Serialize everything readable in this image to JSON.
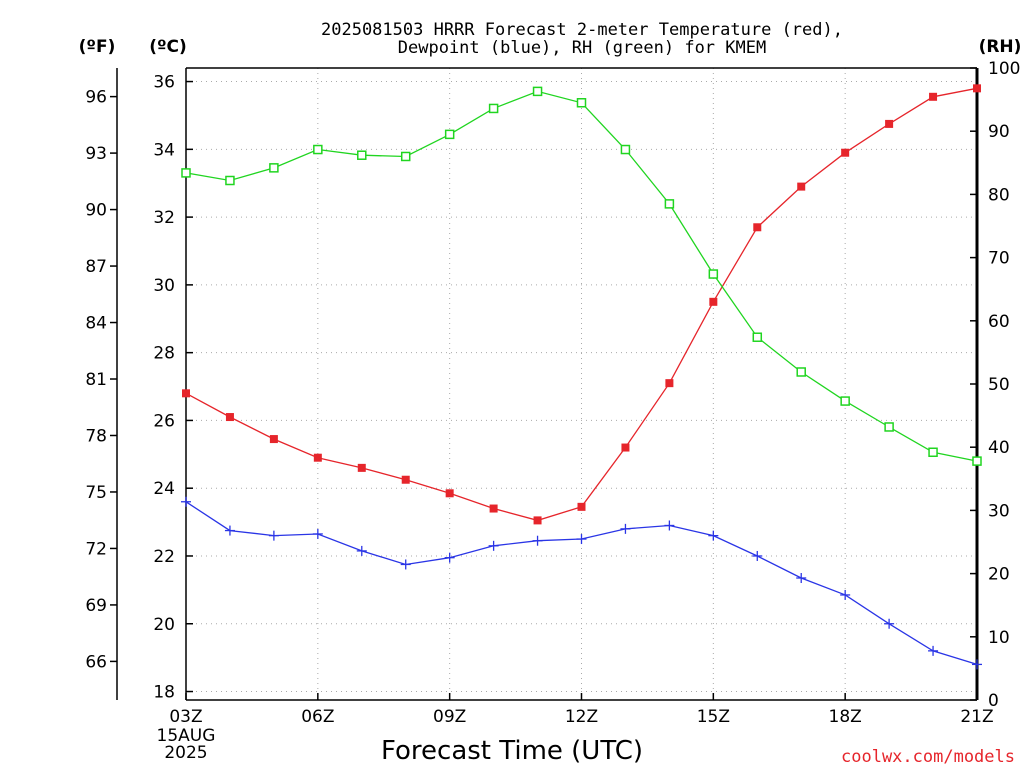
{
  "chart_data": {
    "type": "line",
    "title_lines": [
      "2025081503 HRRR Forecast 2-meter Temperature (red),",
      "Dewpoint (blue), RH (green) for KMEM"
    ],
    "xlabel": "Forecast Time (UTC)",
    "x_labels": [
      "03Z",
      "06Z",
      "09Z",
      "12Z",
      "15Z",
      "18Z",
      "21Z"
    ],
    "x_start_date_lines": [
      "15AUG",
      "2025"
    ],
    "x": [
      "03Z",
      "04Z",
      "05Z",
      "06Z",
      "07Z",
      "08Z",
      "09Z",
      "10Z",
      "11Z",
      "12Z",
      "13Z",
      "14Z",
      "15Z",
      "16Z",
      "17Z",
      "18Z",
      "19Z",
      "20Z",
      "21Z"
    ],
    "axes": {
      "fahrenheit": {
        "label": "(ºF)",
        "ticks": [
          96,
          93,
          90,
          87,
          84,
          81,
          78,
          75,
          72,
          69,
          66
        ]
      },
      "celsius": {
        "label": "(ºC)",
        "ylim": [
          17.75,
          36.4
        ],
        "ticks": [
          36,
          34,
          32,
          30,
          28,
          26,
          24,
          22,
          20,
          18
        ]
      },
      "rh": {
        "label": "(RH)",
        "ylim": [
          0,
          100
        ],
        "ticks": [
          100,
          90,
          80,
          70,
          60,
          50,
          40,
          30,
          20,
          10,
          0
        ]
      }
    },
    "grid": true,
    "series": [
      {
        "name": "Temperature",
        "axis": "celsius",
        "color": "#e6252b",
        "marker": "filled-square",
        "values": [
          26.8,
          26.1,
          25.45,
          24.9,
          24.6,
          24.25,
          23.85,
          23.4,
          23.05,
          23.45,
          25.2,
          27.1,
          29.5,
          31.7,
          32.9,
          33.9,
          34.75,
          35.55,
          35.8
        ]
      },
      {
        "name": "Dewpoint",
        "axis": "celsius",
        "color": "#2a35e6",
        "marker": "plus",
        "values": [
          23.6,
          22.75,
          22.6,
          22.65,
          22.15,
          21.75,
          21.95,
          22.3,
          22.45,
          22.5,
          22.8,
          22.9,
          22.6,
          22.0,
          21.35,
          20.85,
          20.0,
          19.2,
          18.8
        ]
      },
      {
        "name": "RH",
        "axis": "rh",
        "color": "#20d520",
        "marker": "open-square",
        "values": [
          83.4,
          82.2,
          84.2,
          87.1,
          86.2,
          86.0,
          89.5,
          93.6,
          96.3,
          94.5,
          87.1,
          78.5,
          67.4,
          57.4,
          51.9,
          47.3,
          43.2,
          39.2,
          37.8
        ]
      }
    ],
    "credit": "coolwx.com/models"
  }
}
